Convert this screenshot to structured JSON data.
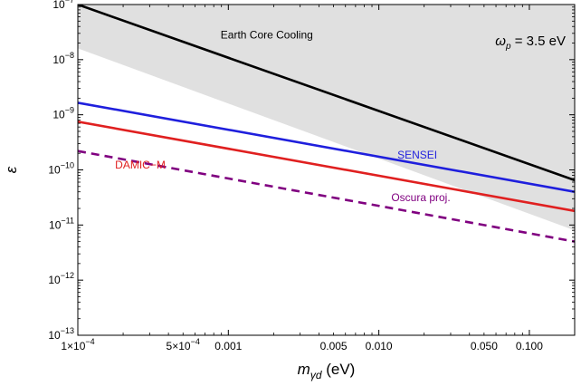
{
  "chart_data": {
    "type": "line",
    "xlabel": {
      "base": "m",
      "sub": "γd",
      "unit": " (eV)"
    },
    "ylabel": "ε",
    "x_scale": "log",
    "y_scale": "log",
    "xlim": [
      0.0001,
      0.2
    ],
    "ylim": [
      1e-13,
      1e-07
    ],
    "x_ticks": [
      {
        "value": 0.0001,
        "mant": "1",
        "exp": "−4"
      },
      {
        "value": 0.0005,
        "mant": "5",
        "exp": "−4"
      },
      {
        "value": 0.001,
        "label": "0.001"
      },
      {
        "value": 0.005,
        "label": "0.005"
      },
      {
        "value": 0.01,
        "label": "0.010"
      },
      {
        "value": 0.05,
        "label": "0.050"
      },
      {
        "value": 0.1,
        "label": "0.100"
      }
    ],
    "y_ticks": [
      {
        "value": 1e-13,
        "exp": "−13"
      },
      {
        "value": 1e-12,
        "exp": "−12"
      },
      {
        "value": 1e-11,
        "exp": "−11"
      },
      {
        "value": 1e-10,
        "exp": "−10"
      },
      {
        "value": 1e-09,
        "exp": "−9"
      },
      {
        "value": 1e-08,
        "exp": "−8"
      },
      {
        "value": 1e-07,
        "exp": "−7"
      }
    ],
    "shaded_region": {
      "color": "#e0e0e0",
      "lower_boundary": {
        "x": [
          0.0001,
          0.2
        ],
        "y": [
          1.6e-08,
          8e-12
        ]
      }
    },
    "series": [
      {
        "name": "Earth Core Cooling",
        "color": "#000000",
        "style": "solid",
        "x": [
          0.0001,
          0.2
        ],
        "y": [
          1e-07,
          6.5e-11
        ]
      },
      {
        "name": "SENSEI",
        "color": "#1f1fdd",
        "style": "solid",
        "x": [
          0.0001,
          0.2
        ],
        "y": [
          1.65e-09,
          4e-11
        ]
      },
      {
        "name": "DAMIC−M",
        "color": "#e02020",
        "style": "solid",
        "x": [
          0.0001,
          0.2
        ],
        "y": [
          7.5e-10,
          1.8e-11
        ]
      },
      {
        "name": "Oscura proj.",
        "color": "#800080",
        "style": "dashed",
        "x": [
          0.0001,
          0.2
        ],
        "y": [
          2.2e-10,
          5e-12
        ]
      }
    ],
    "annotations": [
      {
        "text": "Earth Core Cooling",
        "color": "#000000",
        "x": 0.0018,
        "y": 2.4e-08
      },
      {
        "text": "SENSEI",
        "color": "#1f1fdd",
        "x": 0.018,
        "y": 1.6e-10
      },
      {
        "text": "DAMIC−M",
        "color": "#e02020",
        "x": 0.00026,
        "y": 1.05e-10
      },
      {
        "text": "Oscura proj.",
        "color": "#800080",
        "x": 0.019,
        "y": 2.7e-11
      }
    ],
    "inset_label": {
      "symbol": "ω",
      "sub": "p",
      "rest": " = 3.5 eV"
    },
    "grid": false
  }
}
